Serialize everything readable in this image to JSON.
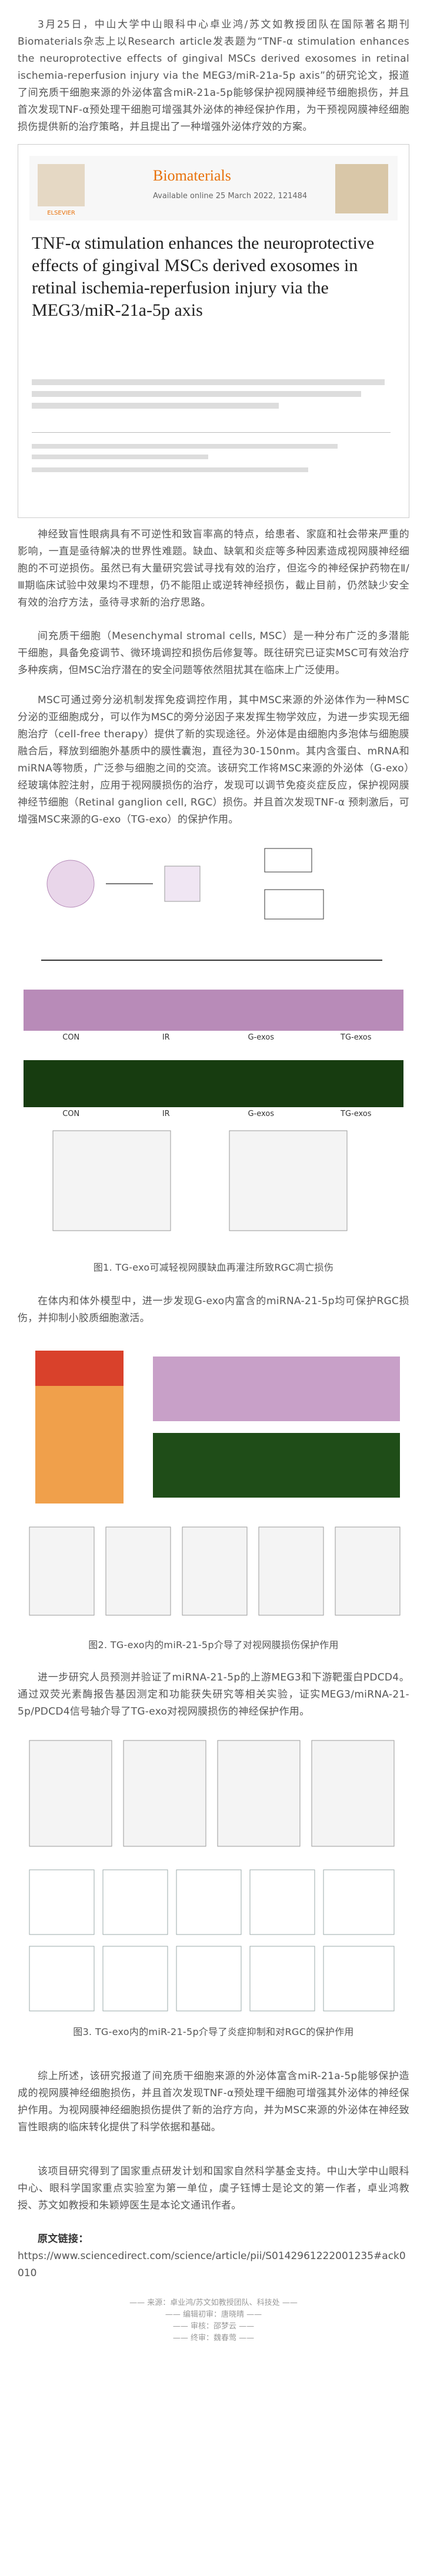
{
  "paragraphs": [
    "3月25日，中山大学中山眼科中心卓业鸿/苏文如教授团队在国际著名期刊Biomaterials杂志上以Research article发表题为“TNF-α stimulation enhances the neuroprotective effects of gingival MSCs derived exosomes in retinal ischemia-reperfusion injury via the MEG3/miR-21a-5p axis”的研究论文，报道了间充质干细胞来源的外泌体富含miR-21a-5p能够保护视网膜神经节细胞损伤，并且首次发现TNF-α预处理干细胞可增强其外泌体的神经保护作用，为干预视网膜神经细胞损伤提供新的治疗策略，并且提出了一种增强外泌体疗效的方案。",
    "神经致盲性眼病具有不可逆性和致盲率高的特点，给患者、家庭和社会带来严重的影响，一直是亟待解决的世界性难题。缺血、缺氧和炎症等多种因素造成视网膜神经细胞的不可逆损伤。虽然已有大量研究尝试寻找有效的治疗，但迄今的神经保护药物在Ⅱ/Ⅲ期临床试验中效果均不理想，仍不能阻止或逆转神经损伤，截止目前，仍然缺少安全有效的治疗方法，亟待寻求新的治疗思路。",
    "间充质干细胞（Mesenchymal stromal cells, MSC）是一种分布广泛的多潜能干细胞，具备免疫调节、微环境调控和损伤后修复等。既往研究已证实MSC可有效治疗多种疾病，但MSC治疗潜在的安全问题等依然阻扰其在临床上广泛使用。",
    "MSC可通过旁分泌机制发挥免疫调控作用，其中MSC来源的外泌体作为一种MSC分泌的亚细胞成分，可以作为MSC的旁分泌因子来发挥生物学效应，为进一步实现无细胞治疗（cell-free therapy）提供了新的实现途径。外泌体是由细胞内多泡体与细胞膜融合后，释放到细胞外基质中的膜性囊泡，直径为30-150nm。其内含蛋白、mRNA和miRNA等物质，广泛参与细胞之间的交流。该研究工作将MSC来源的外泌体（G-exo）经玻璃体腔注射，应用于视网膜损伤的治疗，发现可以调节免疫炎症反应，保护视网膜神经节细胞（Retinal ganglion cell, RGC）损伤。并且首次发现TNF-α 预刺激后，可增强MSC来源的G-exo（TG-exo）的保护作用。",
    "在体内和体外模型中，进一步发现G-exo内富含的miRNA-21-5p均可保护RGC损伤，并抑制小胶质细胞激活。",
    "进一步研究人员预测并验证了miRNA-21-5p的上游MEG3和下游靶蛋白PDCD4。通过双荧光素酶报告基因测定和功能获失研究等相关实验，证实MEG3/miRNA-21-5p/PDCD4信号轴介导了TG-exo对视网膜损伤的神经保护作用。",
    "综上所述，该研究报道了间充质干细胞来源的外泌体富含miR-21a-5p能够保护造成的视网膜神经细胞损伤，并且首次发现TNF-α预处理干细胞可增强其外泌体的神经保护作用。为视网膜神经细胞损伤提供了新的治疗方向，并为MSC来源的外泌体在神经致盲性眼病的临床转化提供了科学依据和基础。",
    "该项目研究得到了国家重点研发计划和国家自然科学基金支持。中山大学中山眼科中心、眼科学国家重点实验室为第一单位，虞子钰博士是论文的第一作者，卓业鸿教授、苏文如教授和朱颖婷医生是本论文通讯作者。"
  ],
  "journal": {
    "publisher": "ELSEVIER",
    "name": "Biomaterials",
    "available": "Available online 25 March 2022, 121484",
    "title": "TNF-α stimulation enhances the neuroprotective effects of gingival MSCs derived exosomes in retinal ischemia-reperfusion injury via the MEG3/miR-21a-5p axis"
  },
  "figures": [
    {
      "caption": "图1. TG-exo可减轻视网膜缺血再灌注所致RGC凋亡损伤",
      "groups": [
        "CON",
        "IR",
        "G-exos",
        "TG-exos"
      ]
    },
    {
      "caption": "图2. TG-exo内的miR-21-5p介导了对视网膜损伤保护作用"
    },
    {
      "caption": "图3. TG-exo内的miR-21-5p介导了炎症抑制和对RGC的保护作用"
    }
  ],
  "link": {
    "label": "原文链接：",
    "url": "https://www.sciencedirect.com/science/article/pii/S0142961222001235#ack0010"
  },
  "footer": [
    "来源：卓业鸿/苏文如教授团队、科技处",
    "编辑初审：唐晓晴",
    "审核：邵梦云",
    "终审：魏春莺"
  ]
}
